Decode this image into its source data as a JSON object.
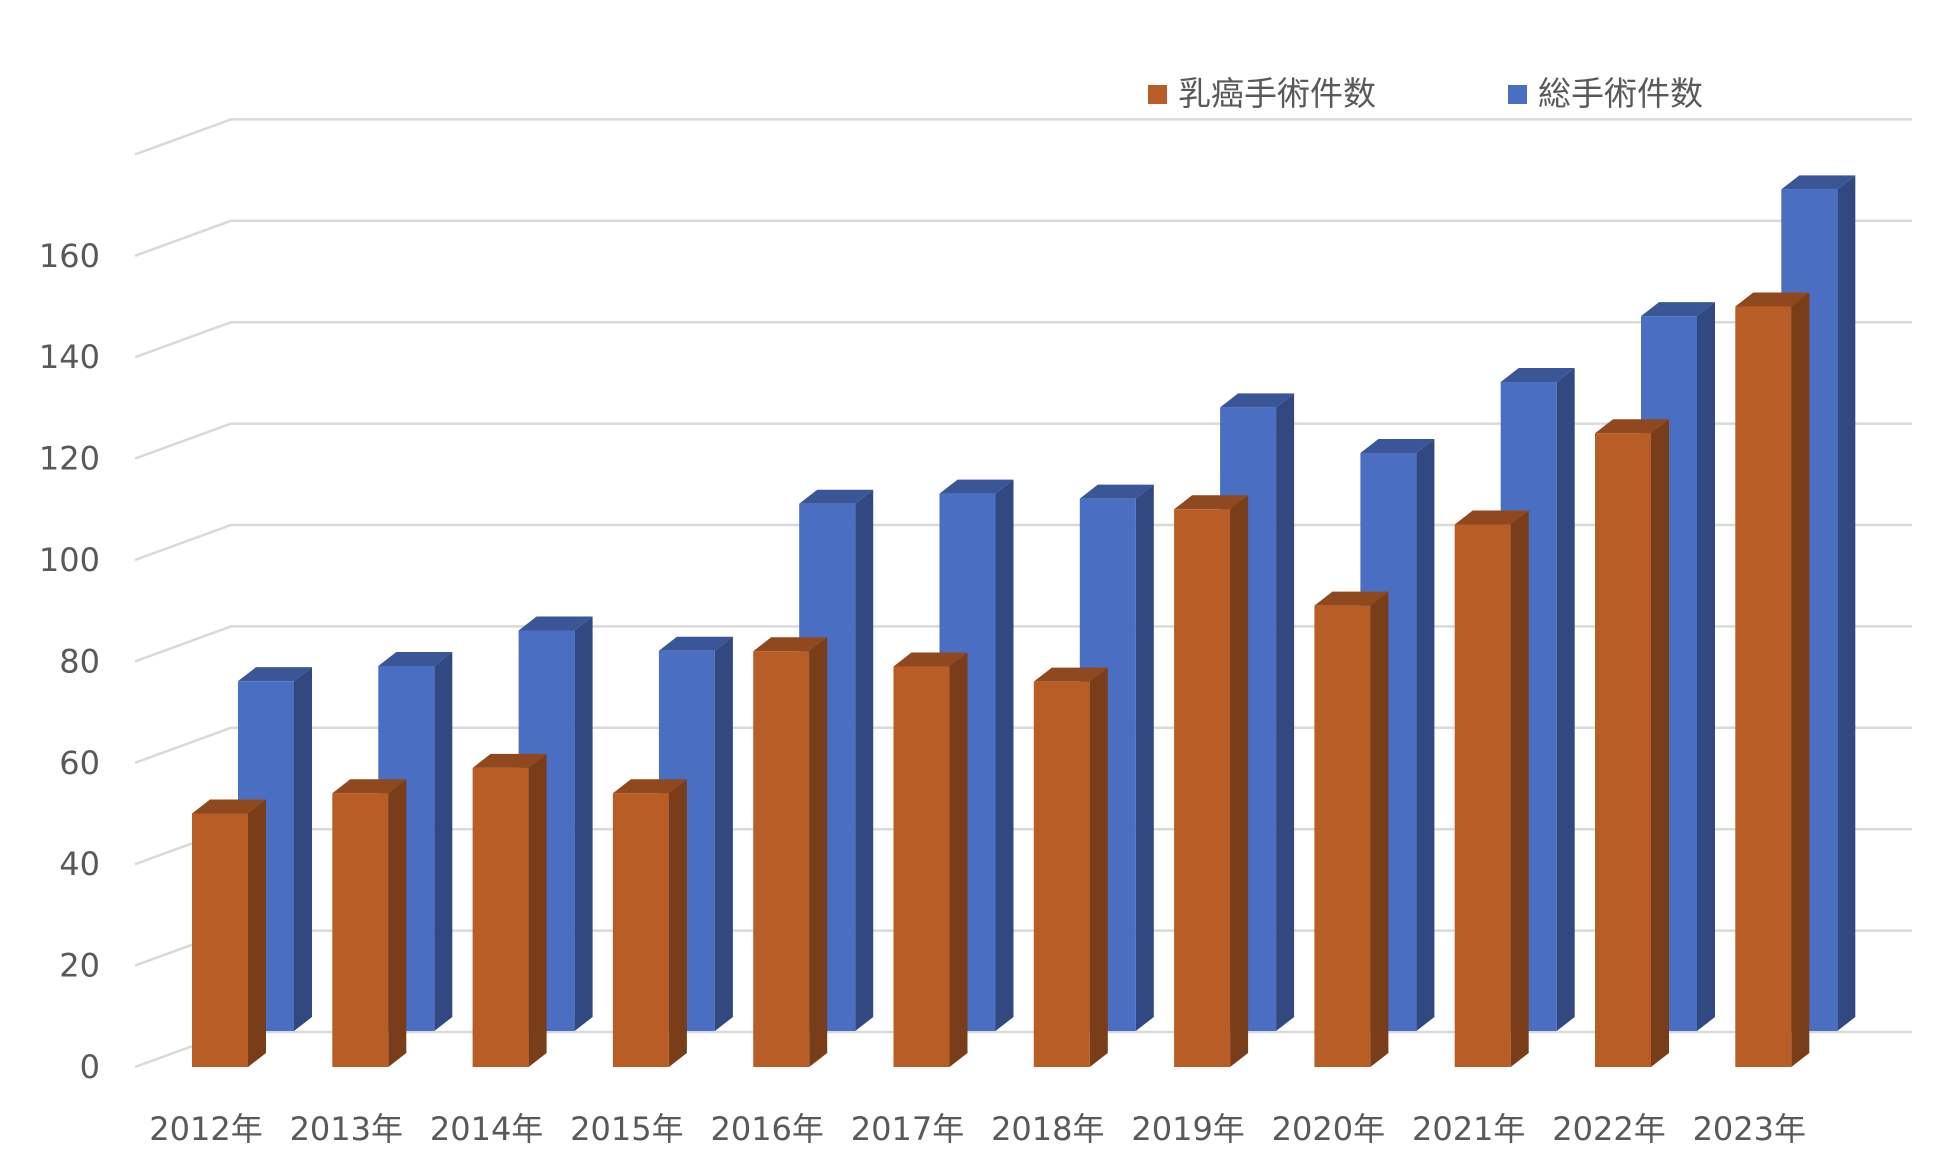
{
  "chart_data": {
    "type": "bar",
    "subtype": "3d-clustered-column",
    "categories": [
      "2012年",
      "2013年",
      "2014年",
      "2015年",
      "2016年",
      "2017年",
      "2018年",
      "2019年",
      "2020年",
      "2021年",
      "2022年",
      "2023年"
    ],
    "series": [
      {
        "name": "乳癌手術件数",
        "values": [
          50,
          54,
          59,
          54,
          82,
          79,
          76,
          110,
          91,
          107,
          125,
          150
        ],
        "color": "#B85D26"
      },
      {
        "name": "総手術件数",
        "values": [
          69,
          72,
          79,
          75,
          104,
          106,
          105,
          123,
          114,
          128,
          141,
          166
        ],
        "color": "#4A6EC2"
      }
    ],
    "yticks": [
      "0",
      "20",
      "40",
      "60",
      "80",
      "100",
      "120",
      "140",
      "160"
    ],
    "ylim": [
      0,
      180
    ],
    "grid": true,
    "legend_position": "top-right",
    "title": "",
    "xlabel": "",
    "ylabel": ""
  }
}
